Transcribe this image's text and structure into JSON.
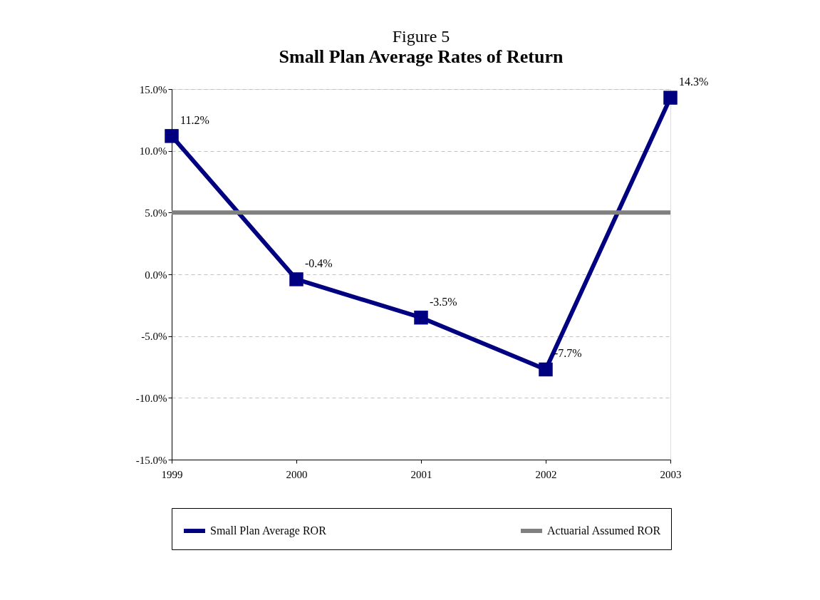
{
  "chart_data": {
    "type": "line",
    "title": "Figure 5",
    "subtitle": "Small Plan Average Rates of Return",
    "categories": [
      "1999",
      "2000",
      "2001",
      "2002",
      "2003"
    ],
    "series": [
      {
        "name": "Small Plan Average ROR",
        "color": "#000080",
        "values": [
          11.2,
          -0.4,
          -3.5,
          -7.7,
          14.3
        ],
        "marker": "square",
        "value_labels": [
          "11.2%",
          "-0.4%",
          "-3.5%",
          "-7.7%",
          "14.3%"
        ]
      },
      {
        "name": "Actuarial Assumed ROR",
        "color": "#808080",
        "values": [
          5,
          5,
          5,
          5,
          5
        ],
        "marker": "none"
      }
    ],
    "ylim": [
      -15,
      15
    ],
    "yticks": [
      {
        "value": -15,
        "label": "-15.0%"
      },
      {
        "value": -10,
        "label": "-10.0%"
      },
      {
        "value": -5,
        "label": "-5.0%"
      },
      {
        "value": 0,
        "label": "0.0%"
      },
      {
        "value": 5,
        "label": "5.0%"
      },
      {
        "value": 10,
        "label": "10.0%"
      },
      {
        "value": 15,
        "label": "15.0%"
      }
    ],
    "grid": "y",
    "legend": "bottom",
    "line_style": "solid"
  }
}
